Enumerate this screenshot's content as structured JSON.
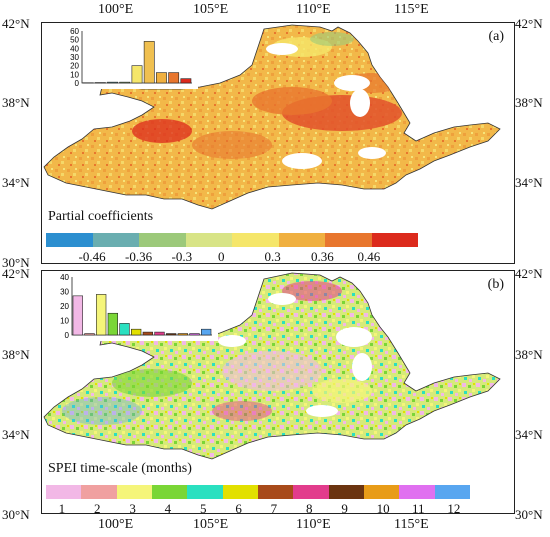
{
  "axes": {
    "longitudes": [
      "100°E",
      "105°E",
      "110°E",
      "115°E"
    ],
    "latitudes": [
      "42°N",
      "38°N",
      "34°N",
      "30°N"
    ]
  },
  "panel_a": {
    "label": "(a)",
    "legend_title": "Partial coefficients",
    "colorbar_colors": [
      "#2c8fd0",
      "#6aaeb0",
      "#9cc97a",
      "#d8e486",
      "#f5e66a",
      "#f0b040",
      "#e8762e",
      "#dc2a1c"
    ],
    "colorbar_labels": [
      "-0.46",
      "-0.36",
      "-0.3",
      "0",
      "0.3",
      "0.36",
      "0.46"
    ],
    "inset": {
      "y_ticks": [
        "0",
        "10",
        "20",
        "30",
        "40",
        "50",
        "60"
      ],
      "ymax": 60,
      "values": [
        0.3,
        0.5,
        1,
        1,
        20,
        48,
        12,
        12,
        5
      ]
    }
  },
  "panel_b": {
    "label": "(b)",
    "legend_title": "SPEI time-scale (months)",
    "colorbar_colors": [
      "#f2b8e6",
      "#f0a0a0",
      "#f5f57a",
      "#7ad636",
      "#2ae0c0",
      "#e2e000",
      "#a84a1a",
      "#e23c8c",
      "#6b3410",
      "#e89c18",
      "#e070f0",
      "#58a6f0"
    ],
    "colorbar_labels": [
      "1",
      "2",
      "3",
      "4",
      "5",
      "6",
      "7",
      "8",
      "9",
      "10",
      "11",
      "12"
    ],
    "inset": {
      "y_ticks": [
        "0",
        "10",
        "20",
        "30",
        "40"
      ],
      "ymax": 40,
      "values": [
        27,
        1,
        28,
        15,
        8,
        4,
        2,
        2,
        1,
        1,
        1,
        4
      ]
    }
  }
}
